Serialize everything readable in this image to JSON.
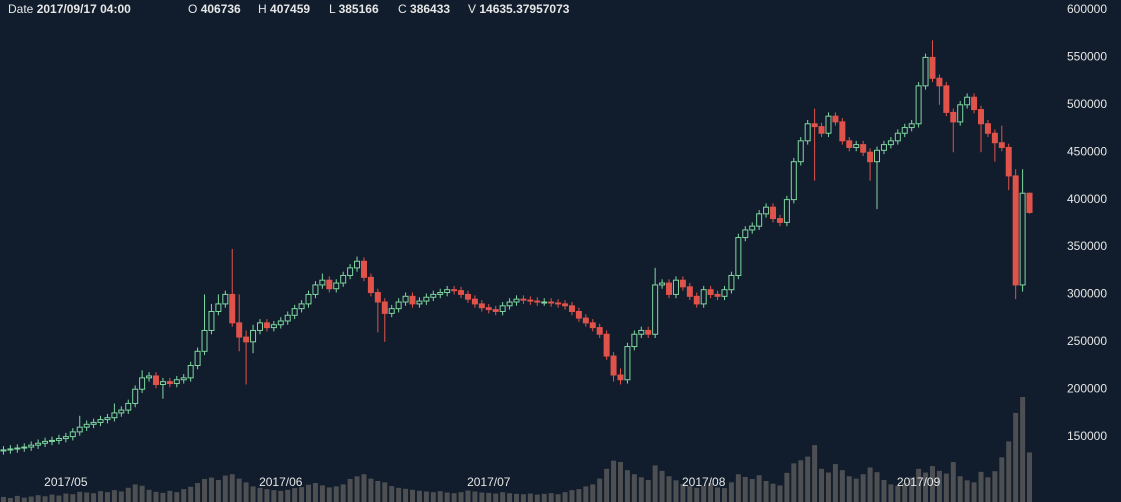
{
  "chart_data": {
    "type": "candlestick",
    "header": {
      "date_label": "Date",
      "date": "2017/09/17 04:00",
      "open_label": "O",
      "high_label": "H",
      "low_label": "L",
      "close_label": "C",
      "volume_label": "V"
    },
    "categories": [
      null,
      null,
      null,
      null,
      null,
      null,
      null,
      null,
      null,
      "2017/05",
      null,
      null,
      null,
      null,
      null,
      null,
      null,
      null,
      null,
      null,
      null,
      null,
      null,
      null,
      null,
      null,
      null,
      null,
      null,
      null,
      null,
      null,
      null,
      null,
      null,
      null,
      null,
      null,
      null,
      null,
      "2017/06",
      null,
      null,
      null,
      null,
      null,
      null,
      null,
      null,
      null,
      null,
      null,
      null,
      null,
      null,
      null,
      null,
      null,
      null,
      null,
      null,
      null,
      null,
      null,
      null,
      null,
      null,
      null,
      null,
      null,
      "2017/07",
      null,
      null,
      null,
      null,
      null,
      null,
      null,
      null,
      null,
      null,
      null,
      null,
      null,
      null,
      null,
      null,
      null,
      null,
      null,
      null,
      null,
      null,
      null,
      null,
      null,
      null,
      null,
      null,
      null,
      null,
      "2017/08",
      null,
      null,
      null,
      null,
      null,
      null,
      null,
      null,
      null,
      null,
      null,
      null,
      null,
      null,
      null,
      null,
      null,
      null,
      null,
      null,
      null,
      null,
      null,
      null,
      null,
      null,
      null,
      null,
      null,
      null,
      "2017/09",
      null,
      null,
      null,
      null,
      null,
      null,
      null,
      null,
      null,
      null,
      null,
      null,
      null,
      null,
      null,
      null
    ],
    "open": [
      135000,
      136000,
      137000,
      138000,
      139000,
      141000,
      143000,
      145000,
      146000,
      148000,
      150000,
      155000,
      160000,
      163000,
      165000,
      168000,
      170000,
      175000,
      178000,
      185000,
      200000,
      212000,
      214000,
      205000,
      208000,
      206000,
      210000,
      212000,
      225000,
      240000,
      262000,
      282000,
      290000,
      300000,
      270000,
      255000,
      250000,
      262000,
      270000,
      265000,
      268000,
      272000,
      278000,
      285000,
      290000,
      300000,
      310000,
      315000,
      306000,
      312000,
      320000,
      328000,
      335000,
      318000,
      302000,
      292000,
      280000,
      285000,
      292000,
      298000,
      290000,
      293000,
      297000,
      300000,
      302000,
      305000,
      304000,
      300000,
      295000,
      290000,
      286000,
      284000,
      282000,
      288000,
      292000,
      295000,
      294000,
      293000,
      292000,
      292000,
      291000,
      290000,
      288000,
      282000,
      275000,
      270000,
      265000,
      258000,
      235000,
      215000,
      210000,
      245000,
      258000,
      262000,
      258000,
      310000,
      312000,
      300000,
      315000,
      308000,
      298000,
      290000,
      305000,
      300000,
      298000,
      305000,
      320000,
      360000,
      368000,
      372000,
      385000,
      392000,
      380000,
      376000,
      400000,
      440000,
      462000,
      480000,
      477000,
      470000,
      488000,
      482000,
      462000,
      455000,
      458000,
      450000,
      440000,
      452000,
      458000,
      462000,
      470000,
      476000,
      480000,
      520000,
      550000,
      528000,
      520000,
      492000,
      482000,
      500000,
      508000,
      495000,
      480000,
      470000,
      460000,
      455000,
      425000,
      310000,
      406736
    ],
    "high": [
      140000,
      141000,
      142000,
      143000,
      145000,
      147000,
      149000,
      150000,
      152000,
      154000,
      159000,
      172000,
      167000,
      169000,
      172000,
      174000,
      185000,
      182000,
      189000,
      204000,
      220000,
      218000,
      218000,
      212000,
      212000,
      214000,
      216000,
      229000,
      244000,
      300000,
      290000,
      300000,
      304000,
      348000,
      300000,
      262000,
      268000,
      274000,
      274000,
      272000,
      276000,
      282000,
      289000,
      294000,
      304000,
      314000,
      322000,
      319000,
      316000,
      324000,
      332000,
      340000,
      339000,
      322000,
      306000,
      296000,
      289000,
      296000,
      302000,
      302000,
      297000,
      301000,
      304000,
      306000,
      309000,
      309000,
      308000,
      304000,
      299000,
      294000,
      290000,
      288000,
      292000,
      296000,
      299000,
      299000,
      298000,
      297000,
      296000,
      296000,
      295000,
      294000,
      292000,
      286000,
      279000,
      274000,
      269000,
      262000,
      239000,
      222000,
      249000,
      262000,
      266000,
      266000,
      328000,
      316000,
      316000,
      319000,
      319000,
      312000,
      302000,
      309000,
      309000,
      304000,
      309000,
      324000,
      364000,
      372000,
      376000,
      389000,
      396000,
      396000,
      384000,
      404000,
      444000,
      466000,
      484000,
      496000,
      481000,
      492000,
      492000,
      486000,
      466000,
      462000,
      462000,
      454000,
      456000,
      462000,
      466000,
      474000,
      480000,
      484000,
      524000,
      554000,
      568000,
      532000,
      524000,
      496000,
      504000,
      512000,
      512000,
      499000,
      484000,
      474000,
      478000,
      459000,
      432000,
      432000,
      407459
    ],
    "low": [
      131000,
      132000,
      133000,
      134000,
      135000,
      137000,
      139000,
      141000,
      142000,
      144000,
      146000,
      151000,
      156000,
      159000,
      161000,
      164000,
      166000,
      171000,
      174000,
      181000,
      196000,
      208000,
      201000,
      190000,
      202000,
      202000,
      206000,
      208000,
      221000,
      236000,
      258000,
      278000,
      286000,
      266000,
      240000,
      205000,
      238000,
      258000,
      261000,
      261000,
      264000,
      268000,
      274000,
      281000,
      286000,
      296000,
      306000,
      302000,
      302000,
      308000,
      316000,
      324000,
      314000,
      298000,
      260000,
      250000,
      276000,
      281000,
      288000,
      286000,
      286000,
      289000,
      293000,
      296000,
      298000,
      300000,
      296000,
      291000,
      286000,
      282000,
      280000,
      278000,
      278000,
      284000,
      288000,
      290000,
      289000,
      288000,
      288000,
      287000,
      286000,
      284000,
      278000,
      271000,
      266000,
      261000,
      254000,
      231000,
      208000,
      205000,
      206000,
      241000,
      254000,
      254000,
      254000,
      306000,
      296000,
      296000,
      304000,
      294000,
      286000,
      286000,
      296000,
      294000,
      294000,
      301000,
      316000,
      356000,
      364000,
      368000,
      381000,
      376000,
      372000,
      372000,
      396000,
      436000,
      458000,
      420000,
      466000,
      466000,
      478000,
      458000,
      451000,
      451000,
      446000,
      420000,
      390000,
      448000,
      454000,
      458000,
      466000,
      472000,
      476000,
      516000,
      524000,
      500000,
      488000,
      450000,
      478000,
      496000,
      491000,
      450000,
      466000,
      440000,
      451000,
      410000,
      295000,
      303000,
      385166
    ],
    "close": [
      136000,
      137000,
      138000,
      139000,
      141000,
      143000,
      145000,
      146000,
      148000,
      150000,
      155000,
      160000,
      163000,
      165000,
      168000,
      170000,
      175000,
      178000,
      185000,
      200000,
      212000,
      214000,
      205000,
      208000,
      206000,
      210000,
      212000,
      225000,
      240000,
      262000,
      282000,
      290000,
      300000,
      270000,
      255000,
      250000,
      262000,
      270000,
      265000,
      268000,
      272000,
      278000,
      285000,
      290000,
      300000,
      310000,
      315000,
      306000,
      312000,
      320000,
      328000,
      335000,
      318000,
      302000,
      292000,
      280000,
      285000,
      292000,
      298000,
      290000,
      293000,
      297000,
      300000,
      302000,
      305000,
      304000,
      300000,
      295000,
      290000,
      286000,
      284000,
      282000,
      288000,
      292000,
      295000,
      294000,
      293000,
      292000,
      292000,
      291000,
      290000,
      288000,
      282000,
      275000,
      270000,
      265000,
      258000,
      235000,
      215000,
      210000,
      245000,
      258000,
      262000,
      258000,
      310000,
      312000,
      300000,
      315000,
      308000,
      298000,
      290000,
      305000,
      300000,
      298000,
      305000,
      320000,
      360000,
      368000,
      372000,
      385000,
      392000,
      380000,
      376000,
      400000,
      440000,
      462000,
      480000,
      477000,
      470000,
      488000,
      482000,
      462000,
      455000,
      458000,
      450000,
      440000,
      452000,
      458000,
      462000,
      470000,
      476000,
      480000,
      520000,
      550000,
      528000,
      520000,
      492000,
      482000,
      500000,
      508000,
      495000,
      480000,
      470000,
      460000,
      455000,
      425000,
      310000,
      406736,
      386433
    ],
    "volume": [
      1500,
      1200,
      1800,
      1300,
      1600,
      2000,
      1700,
      2200,
      1900,
      2500,
      2300,
      3000,
      2800,
      2600,
      3200,
      2900,
      3500,
      3100,
      4200,
      5200,
      4800,
      3600,
      3000,
      2700,
      3300,
      2900,
      3800,
      4500,
      5600,
      6800,
      7200,
      6500,
      7800,
      8200,
      6900,
      5800,
      4600,
      4200,
      3800,
      3500,
      3300,
      3600,
      4100,
      4400,
      5100,
      5600,
      4900,
      4300,
      4600,
      5200,
      6800,
      7600,
      8200,
      6900,
      6200,
      5800,
      4700,
      4200,
      3900,
      3600,
      3300,
      3100,
      2900,
      3200,
      2800,
      2600,
      2900,
      3400,
      3100,
      2800,
      2700,
      2500,
      2900,
      2600,
      2400,
      2300,
      2500,
      2200,
      2400,
      2600,
      2300,
      2900,
      3500,
      3800,
      4600,
      5200,
      6900,
      9800,
      12200,
      11800,
      9400,
      8200,
      7300,
      6500,
      10800,
      9200,
      7600,
      6400,
      5300,
      4700,
      4200,
      4800,
      5600,
      4300,
      4100,
      5800,
      8200,
      7400,
      6800,
      7900,
      6200,
      5400,
      4900,
      8600,
      11400,
      12300,
      13400,
      16800,
      9800,
      8700,
      11200,
      9400,
      7600,
      6900,
      8200,
      10200,
      8800,
      6500,
      5200,
      4800,
      5600,
      7200,
      9800,
      8700,
      10600,
      9200,
      8400,
      11800,
      7600,
      6400,
      5800,
      8900,
      7300,
      9100,
      13200,
      17900,
      26300,
      31000,
      14635.37957073
    ],
    "ylim": [
      80000,
      600000
    ],
    "yticks": [
      150000,
      200000,
      250000,
      300000,
      350000,
      400000,
      450000,
      500000,
      550000,
      600000
    ],
    "up_color": "#7fd6a0",
    "down_color": "#e0534b",
    "volume_color": "#4d4f52"
  }
}
